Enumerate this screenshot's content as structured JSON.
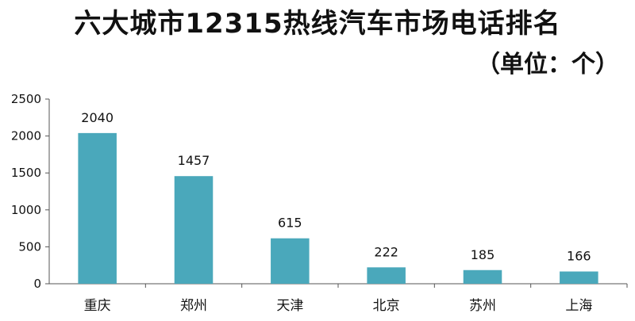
{
  "chart_data": {
    "type": "bar",
    "title": "六大城市12315热线汽车市场电话排名",
    "subtitle": "（单位：个）",
    "categories": [
      "重庆",
      "郑州",
      "天津",
      "北京",
      "苏州",
      "上海"
    ],
    "values": [
      2040,
      1457,
      615,
      222,
      185,
      166
    ],
    "yticks": [
      "0",
      "500",
      "1000",
      "1500",
      "2000",
      "2500"
    ],
    "ylim": [
      0,
      2500
    ],
    "xlabel": "",
    "ylabel": "",
    "grid": false,
    "legend": "none",
    "bar_color": "#4aa8bb"
  }
}
